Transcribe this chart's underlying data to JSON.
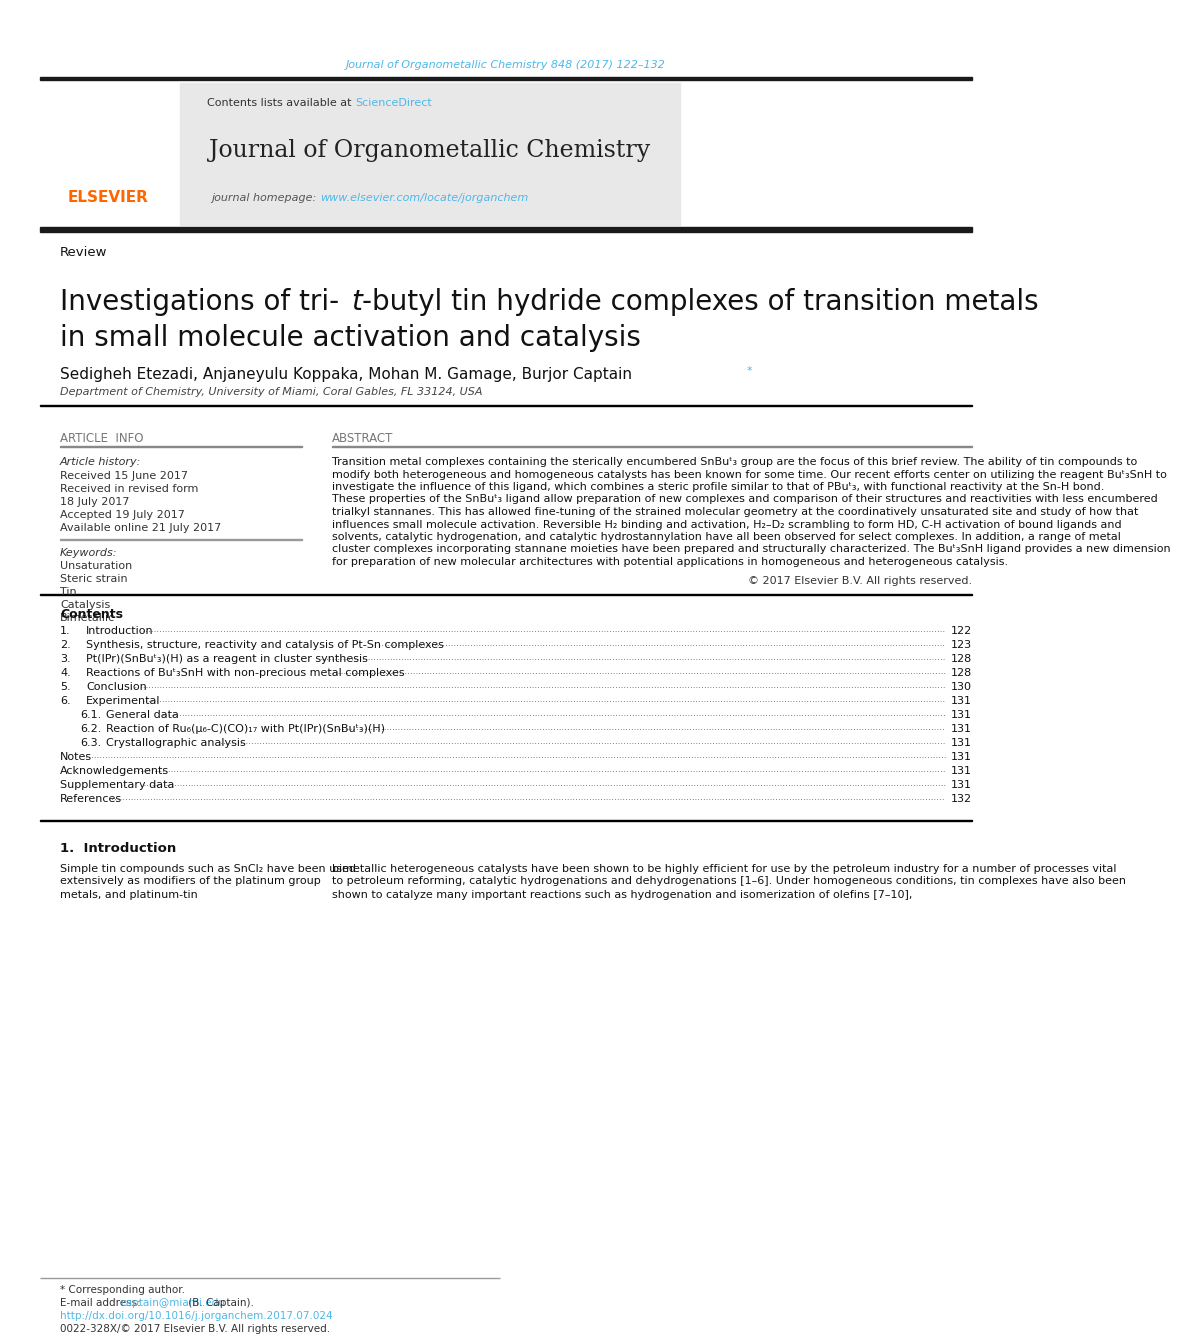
{
  "page_bg": "#ffffff",
  "top_link_text": "Journal of Organometallic Chemistry 848 (2017) 122–132",
  "top_link_color": "#4db8e8",
  "header_bg": "#e8e8e8",
  "header_contents": "Contents lists available at",
  "header_sciencedirect": "ScienceDirect",
  "header_sciencedirect_color": "#4db8e8",
  "journal_title": "Journal of Organometallic Chemistry",
  "journal_homepage_text": "journal homepage: ",
  "journal_url": "www.elsevier.com/locate/jorganchem",
  "journal_url_color": "#4db8e8",
  "elsevier_color": "#FF6600",
  "section_label": "Review",
  "article_title_line2": "in small molecule activation and catalysis",
  "authors": "Sedigheh Etezadi, Anjaneyulu Koppaka, Mohan M. Gamage, Burjor Captain",
  "affiliation": "Department of Chemistry, University of Miami, Coral Gables, FL 33124, USA",
  "article_info_header": "ARTICLE  INFO",
  "abstract_header": "ABSTRACT",
  "article_history_label": "Article history:",
  "received_1": "Received 15 June 2017",
  "received_revised": "Received in revised form",
  "received_revised_date": "18 July 2017",
  "accepted": "Accepted 19 July 2017",
  "available": "Available online 21 July 2017",
  "keywords_label": "Keywords:",
  "keywords": [
    "Unsaturation",
    "Steric strain",
    "Tin",
    "Catalysis",
    "Bimetallic"
  ],
  "abstract_text": "Transition metal complexes containing the sterically encumbered SnBuᵗ₃ group are the focus of this brief review. The ability of tin compounds to modify both heterogeneous and homogeneous catalysts has been known for some time. Our recent efforts center on utilizing the reagent Buᵗ₃SnH to investigate the influence of this ligand, which combines a steric profile similar to that of PBuᵗ₃, with functional reactivity at the Sn-H bond. These properties of the SnBuᵗ₃ ligand allow preparation of new complexes and comparison of their structures and reactivities with less encumbered trialkyl stannanes. This has allowed fine-tuning of the strained molecular geometry at the coordinatively unsaturated site and study of how that influences small molecule activation. Reversible H₂ binding and activation, H₂–D₂ scrambling to form HD, C-H activation of bound ligands and solvents, catalytic hydrogenation, and catalytic hydrostannylation have all been observed for select complexes. In addition, a range of metal cluster complexes incorporating stannane moieties have been prepared and structurally characterized. The Buᵗ₃SnH ligand provides a new dimension for preparation of new molecular architectures with potential applications in homogeneous and heterogeneous catalysis.",
  "copyright": "© 2017 Elsevier B.V. All rights reserved.",
  "contents_title": "Contents",
  "contents_items": [
    {
      "num": "1.",
      "title": "Introduction",
      "page": "122"
    },
    {
      "num": "2.",
      "title": "Synthesis, structure, reactivity and catalysis of Pt-Sn complexes",
      "page": "123"
    },
    {
      "num": "3.",
      "title": "Pt(IPr)(SnBuᵗ₃)(H) as a reagent in cluster synthesis",
      "page": "128"
    },
    {
      "num": "4.",
      "title": "Reactions of Buᵗ₃SnH with non-precious metal complexes",
      "page": "128"
    },
    {
      "num": "5.",
      "title": "Conclusion",
      "page": "130"
    },
    {
      "num": "6.",
      "title": "Experimental",
      "page": "131"
    },
    {
      "num": "6.1.",
      "title": "General data",
      "page": "131"
    },
    {
      "num": "6.2.",
      "title": "Reaction of Ru₆(μ₆-C)(CO)₁₇ with Pt(IPr)(SnBuᵗ₃)(H)",
      "page": "131"
    },
    {
      "num": "6.3.",
      "title": "Crystallographic analysis",
      "page": "131"
    },
    {
      "num": "",
      "title": "Notes",
      "page": "131"
    },
    {
      "num": "",
      "title": "Acknowledgements",
      "page": "131"
    },
    {
      "num": "",
      "title": "Supplementary data",
      "page": "131"
    },
    {
      "num": "",
      "title": "References",
      "page": "132"
    }
  ],
  "intro_section": "1.  Introduction",
  "intro_col1": "Simple tin compounds such as SnCl₂ have been used extensively as modifiers of the platinum group metals, and platinum-tin",
  "intro_col2": "bimetallic heterogeneous catalysts have been shown to be highly efficient for use by the petroleum industry for a number of processes vital to petroleum reforming, catalytic hydrogenations and dehydrogenations [1–6]. Under homogeneous conditions, tin complexes have also been shown to catalyze many important reactions such as hydrogenation and isomerization of olefins [7–10],",
  "footer_corresponding": "* Corresponding author.",
  "footer_email_label": "E-mail address: ",
  "footer_email": "captain@miami.edu",
  "footer_email_color": "#4db8e8",
  "footer_email_suffix": " (B. Captain).",
  "footer_doi": "http://dx.doi.org/10.1016/j.jorganchem.2017.07.024",
  "footer_doi_color": "#4db8e8",
  "footer_issn": "0022-328X/© 2017 Elsevier B.V. All rights reserved.",
  "dark_bar_color": "#1a1a1a",
  "separator_color": "#000000",
  "thin_line_color": "#aaaaaa"
}
